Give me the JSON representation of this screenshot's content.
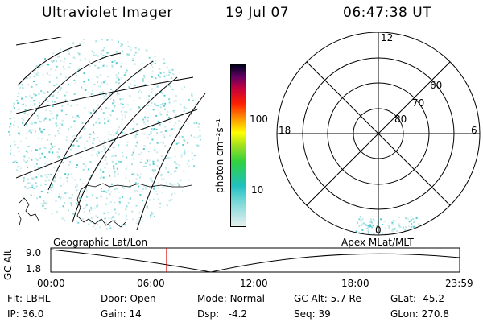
{
  "header": {
    "instrument": "Ultraviolet Imager",
    "date": "19 Jul 07",
    "time": "06:47:38 UT"
  },
  "colorbar": {
    "unit_label": "photon cm⁻²s⁻¹",
    "ticks": [
      "100",
      "10"
    ]
  },
  "polar_plot": {
    "clock_labels": {
      "top": "12",
      "left": "18",
      "right": "6",
      "bottom": "0"
    },
    "lat_labels": [
      "60",
      "70",
      "80"
    ]
  },
  "panel_labels": {
    "left": "Geographic Lat/Lon",
    "right": "Apex MLat/MLT"
  },
  "timeline": {
    "y_label": "GC Alt",
    "y_ticks": [
      "9.0",
      "1.8"
    ],
    "x_ticks": [
      "00:00",
      "06:00",
      "12:00",
      "18:00",
      "23:59"
    ],
    "marker_time": "06:47:38",
    "marker_color": "#e00000"
  },
  "info": {
    "flt": {
      "label": "Flt:",
      "value": "LBHL"
    },
    "ip": {
      "label": "IP:",
      "value": "36.0"
    },
    "door": {
      "label": "Door:",
      "value": "Open"
    },
    "gain": {
      "label": "Gain:",
      "value": "14"
    },
    "mode": {
      "label": "Mode:",
      "value": "Normal"
    },
    "dsp": {
      "label": "Dsp:",
      "value": "-4.2"
    },
    "gcalt": {
      "label": "GC Alt:",
      "value": "5.7 Re"
    },
    "seq": {
      "label": "Seq:",
      "value": "39"
    },
    "glat": {
      "label": "GLat:",
      "value": "-45.2"
    },
    "glon": {
      "label": "GLon:",
      "value": "270.8"
    }
  },
  "colors": {
    "emission": "#7fd8d8",
    "colorbar_stops": [
      "#e8f0f0",
      "#7ad8d8",
      "#20c0c0",
      "#30d040",
      "#a0e020",
      "#ffff00",
      "#ffa000",
      "#ff2000",
      "#c00040",
      "#600060",
      "#000020"
    ]
  }
}
